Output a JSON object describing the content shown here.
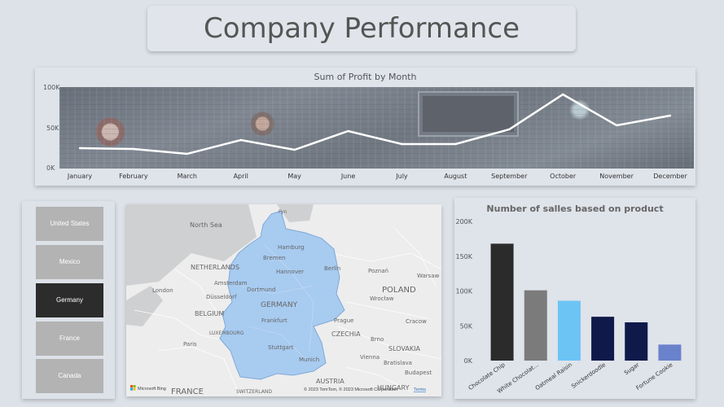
{
  "header": {
    "title": "Company Performance"
  },
  "line_chart": {
    "title": "Sum of Profit by Month",
    "y_ticks": [
      "100K",
      "50K",
      "0K"
    ],
    "months": [
      "January",
      "February",
      "March",
      "April",
      "May",
      "June",
      "July",
      "August",
      "September",
      "October",
      "November",
      "December"
    ],
    "line_color": "#ffffff"
  },
  "slicer": {
    "items": [
      {
        "label": "United States",
        "selected": false
      },
      {
        "label": "Mexico",
        "selected": false
      },
      {
        "label": "Germany",
        "selected": true
      },
      {
        "label": "France",
        "selected": false
      },
      {
        "label": "Canada",
        "selected": false
      }
    ],
    "selected_color": "#2c2c2c",
    "unselected_color": "#b3b3b3"
  },
  "map": {
    "labels": {
      "north_sea": "North Sea",
      "netherlands": "NETHERLANDS",
      "belgium": "BELGIUM",
      "france": "FRANCE",
      "poland": "POLAND",
      "czechia": "CZECHIA",
      "slovakia": "SLOVAKIA",
      "austria": "AUSTRIA",
      "hungary": "HUNGARY",
      "germany": "GERMANY",
      "luxembourg": "LUXEMBOURG",
      "london": "London",
      "paris": "Paris",
      "amsterdam": "Amsterdam",
      "dusseldorf": "Düsseldorf",
      "dortmund": "Dortmund",
      "hamburg": "Hamburg",
      "bremen": "Bremen",
      "hannover": "Hannover",
      "berlin": "Berlin",
      "frankfurt": "Frankfurt",
      "stuttgart": "Stuttgart",
      "munich": "Munich",
      "poznan": "Poznań",
      "wroclaw": "Wrocław",
      "prague": "Prague",
      "vienna": "Vienna",
      "brno": "Brno",
      "bratislava": "Bratislava",
      "budapest": "Budapest",
      "warsaw": "Warsaw",
      "cracow": "Cracow",
      "fyn": "Fyn",
      "switzerland": "SWITZERLAND"
    },
    "highlight_color": "#a8cbf0",
    "attribution": "© 2023 TomTom, © 2023 Microsoft Corporation",
    "terms_link": "Terms",
    "logo_text": "Microsoft Bing"
  },
  "bar_chart": {
    "title": "Number of salles based on product",
    "y_ticks": [
      "200K",
      "150K",
      "100K",
      "50K",
      "0K"
    ],
    "chart_data": {
      "type": "bar",
      "categories": [
        "Chocolate Chip",
        "White Chocolat...",
        "Oatmeal Raisin",
        "Snickerdoodle",
        "Sugar",
        "Fortune Cookie"
      ],
      "values": [
        168000,
        101000,
        86000,
        63000,
        55000,
        23000
      ],
      "colors": [
        "#2b2b2b",
        "#7b7b7b",
        "#6cc4f5",
        "#0f1a4a",
        "#0f1a4a",
        "#6a82cc"
      ],
      "title": "Number of salles based on product",
      "ylim": [
        0,
        200000
      ]
    }
  },
  "line_chart_data": {
    "type": "line",
    "x": [
      "January",
      "February",
      "March",
      "April",
      "May",
      "June",
      "July",
      "August",
      "September",
      "October",
      "November",
      "December"
    ],
    "values": [
      25000,
      24000,
      18000,
      35000,
      23000,
      46000,
      30000,
      30000,
      48000,
      91000,
      53000,
      65000
    ],
    "ylim": [
      0,
      100000
    ]
  }
}
